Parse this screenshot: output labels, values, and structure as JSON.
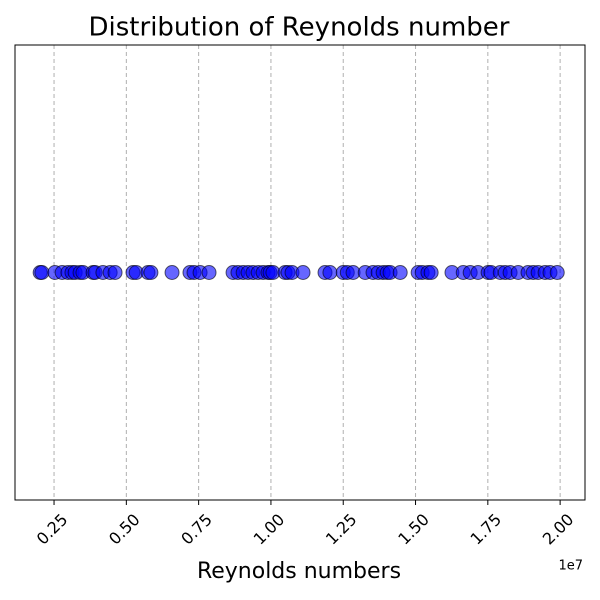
{
  "chart_data": {
    "type": "scatter",
    "title": "Distribution of Reynolds number",
    "x_label": "Reynolds numbers",
    "x_offset_label": "1e7",
    "color": "#0000ff",
    "edge_color": "#000000",
    "grid": true,
    "x": [
      0.202,
      0.208,
      0.253,
      0.278,
      0.298,
      0.312,
      0.323,
      0.34,
      0.35,
      0.385,
      0.392,
      0.419,
      0.444,
      0.461,
      0.523,
      0.534,
      0.575,
      0.585,
      0.658,
      0.72,
      0.734,
      0.755,
      0.786,
      0.869,
      0.886,
      0.904,
      0.921,
      0.938,
      0.956,
      0.973,
      0.99,
      0.997,
      1.007,
      1.049,
      1.059,
      1.073,
      1.111,
      1.187,
      1.204,
      1.25,
      1.264,
      1.284,
      1.326,
      1.353,
      1.371,
      1.388,
      1.402,
      1.412,
      1.447,
      1.509,
      1.523,
      1.543,
      1.554,
      1.626,
      1.665,
      1.689,
      1.716,
      1.751,
      1.761,
      1.793,
      1.81,
      1.827,
      1.855,
      1.889,
      1.907,
      1.924,
      1.948,
      1.965,
      1.99
    ],
    "values": [
      0,
      0,
      0,
      0,
      0,
      0,
      0,
      0,
      0,
      0,
      0,
      0,
      0,
      0,
      0,
      0,
      0,
      0,
      0,
      0,
      0,
      0,
      0,
      0,
      0,
      0,
      0,
      0,
      0,
      0,
      0,
      0,
      0,
      0,
      0,
      0,
      0,
      0,
      0,
      0,
      0,
      0,
      0,
      0,
      0,
      0,
      0,
      0,
      0,
      0,
      0,
      0,
      0,
      0,
      0,
      0,
      0,
      0,
      0,
      0,
      0,
      0,
      0,
      0,
      0,
      0,
      0,
      0,
      0
    ],
    "xlim": [
      0.115,
      2.086
    ],
    "ylim": [
      -1,
      1
    ],
    "xticks": [
      0.25,
      {
        "value": 0.5,
        "label": "0.50"
      },
      0.75,
      {
        "value": 1.0,
        "label": "1.00"
      },
      1.25,
      {
        "value": 1.5,
        "label": "1.50"
      },
      1.75,
      {
        "value": 2.0,
        "label": "2.00"
      }
    ]
  }
}
